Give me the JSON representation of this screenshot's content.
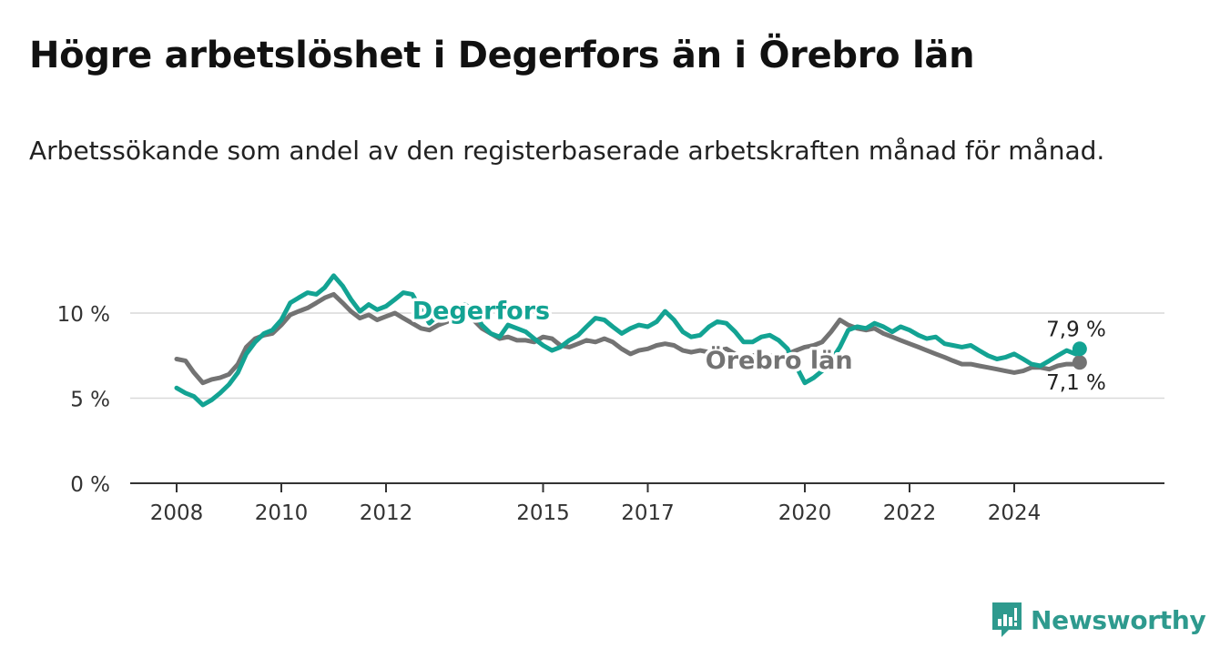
{
  "header": {
    "title": "Högre arbetslöshet i Degerfors än i Örebro län",
    "subtitle": "Arbetssökande som andel av den registerbaserade arbetskraften månad för månad."
  },
  "brand": {
    "name": "Newsworthy",
    "icon": "newsworthy-logo-icon",
    "color": "#2e9a8e"
  },
  "chart_data": {
    "type": "line",
    "title": "Högre arbetslöshet i Degerfors än i Örebro län",
    "subtitle": "Arbetssökande som andel av den registerbaserade arbetskraften månad för månad.",
    "ylim": [
      0,
      12.5
    ],
    "yticks": [
      0,
      5,
      10
    ],
    "ytick_labels": [
      "0 %",
      "5 %",
      "10 %"
    ],
    "xlim": [
      2008,
      2026.25
    ],
    "xticks": [
      2008,
      2010,
      2012,
      2015,
      2017,
      2020,
      2022,
      2024
    ],
    "xtick_labels": [
      "2008",
      "2010",
      "2012",
      "2015",
      "2017",
      "2020",
      "2022",
      "2024"
    ],
    "grid": true,
    "legend": "inline-labels",
    "series": [
      {
        "name": "Degerfors",
        "color": "#13a393",
        "end_label": "7,9 %",
        "points": [
          [
            2008.0,
            5.6
          ],
          [
            2008.17,
            5.3
          ],
          [
            2008.33,
            5.1
          ],
          [
            2008.5,
            4.6
          ],
          [
            2008.67,
            4.9
          ],
          [
            2008.83,
            5.3
          ],
          [
            2009.0,
            5.8
          ],
          [
            2009.17,
            6.5
          ],
          [
            2009.33,
            7.6
          ],
          [
            2009.5,
            8.3
          ],
          [
            2009.67,
            8.8
          ],
          [
            2009.83,
            9.0
          ],
          [
            2010.0,
            9.6
          ],
          [
            2010.17,
            10.6
          ],
          [
            2010.33,
            10.9
          ],
          [
            2010.5,
            11.2
          ],
          [
            2010.67,
            11.1
          ],
          [
            2010.83,
            11.5
          ],
          [
            2011.0,
            12.2
          ],
          [
            2011.17,
            11.6
          ],
          [
            2011.33,
            10.8
          ],
          [
            2011.5,
            10.1
          ],
          [
            2011.67,
            10.5
          ],
          [
            2011.83,
            10.2
          ],
          [
            2012.0,
            10.4
          ],
          [
            2012.17,
            10.8
          ],
          [
            2012.33,
            11.2
          ],
          [
            2012.5,
            11.1
          ],
          [
            2012.67,
            10.2
          ],
          [
            2012.83,
            9.4
          ],
          [
            2013.0,
            9.9
          ],
          [
            2013.17,
            10.1
          ],
          [
            2013.33,
            10.3
          ],
          [
            2013.5,
            10.5
          ],
          [
            2013.67,
            10.2
          ],
          [
            2013.83,
            9.3
          ],
          [
            2014.0,
            8.8
          ],
          [
            2014.17,
            8.6
          ],
          [
            2014.33,
            9.3
          ],
          [
            2014.5,
            9.1
          ],
          [
            2014.67,
            8.9
          ],
          [
            2014.83,
            8.5
          ],
          [
            2015.0,
            8.1
          ],
          [
            2015.17,
            7.8
          ],
          [
            2015.33,
            8.0
          ],
          [
            2015.5,
            8.4
          ],
          [
            2015.67,
            8.7
          ],
          [
            2015.83,
            9.2
          ],
          [
            2016.0,
            9.7
          ],
          [
            2016.17,
            9.6
          ],
          [
            2016.33,
            9.2
          ],
          [
            2016.5,
            8.8
          ],
          [
            2016.67,
            9.1
          ],
          [
            2016.83,
            9.3
          ],
          [
            2017.0,
            9.2
          ],
          [
            2017.17,
            9.5
          ],
          [
            2017.33,
            10.1
          ],
          [
            2017.5,
            9.6
          ],
          [
            2017.67,
            8.9
          ],
          [
            2017.83,
            8.6
          ],
          [
            2018.0,
            8.7
          ],
          [
            2018.17,
            9.2
          ],
          [
            2018.33,
            9.5
          ],
          [
            2018.5,
            9.4
          ],
          [
            2018.67,
            8.9
          ],
          [
            2018.83,
            8.3
          ],
          [
            2019.0,
            8.3
          ],
          [
            2019.17,
            8.6
          ],
          [
            2019.33,
            8.7
          ],
          [
            2019.5,
            8.4
          ],
          [
            2019.67,
            7.9
          ],
          [
            2019.83,
            6.9
          ],
          [
            2020.0,
            5.9
          ],
          [
            2020.17,
            6.2
          ],
          [
            2020.33,
            6.6
          ],
          [
            2020.5,
            7.2
          ],
          [
            2020.67,
            8.0
          ],
          [
            2020.83,
            9.0
          ],
          [
            2021.0,
            9.2
          ],
          [
            2021.17,
            9.1
          ],
          [
            2021.33,
            9.4
          ],
          [
            2021.5,
            9.2
          ],
          [
            2021.67,
            8.9
          ],
          [
            2021.83,
            9.2
          ],
          [
            2022.0,
            9.0
          ],
          [
            2022.17,
            8.7
          ],
          [
            2022.33,
            8.5
          ],
          [
            2022.5,
            8.6
          ],
          [
            2022.67,
            8.2
          ],
          [
            2022.83,
            8.1
          ],
          [
            2023.0,
            8.0
          ],
          [
            2023.17,
            8.1
          ],
          [
            2023.33,
            7.8
          ],
          [
            2023.5,
            7.5
          ],
          [
            2023.67,
            7.3
          ],
          [
            2023.83,
            7.4
          ],
          [
            2024.0,
            7.6
          ],
          [
            2024.17,
            7.3
          ],
          [
            2024.33,
            7.0
          ],
          [
            2024.5,
            6.9
          ],
          [
            2024.67,
            7.2
          ],
          [
            2024.83,
            7.5
          ],
          [
            2025.0,
            7.8
          ],
          [
            2025.17,
            7.6
          ],
          [
            2025.25,
            7.9
          ]
        ]
      },
      {
        "name": "Örebro län",
        "color": "#737373",
        "end_label": "7,1 %",
        "points": [
          [
            2008.0,
            7.3
          ],
          [
            2008.17,
            7.2
          ],
          [
            2008.33,
            6.5
          ],
          [
            2008.5,
            5.9
          ],
          [
            2008.67,
            6.1
          ],
          [
            2008.83,
            6.2
          ],
          [
            2009.0,
            6.4
          ],
          [
            2009.17,
            7.0
          ],
          [
            2009.33,
            8.0
          ],
          [
            2009.5,
            8.5
          ],
          [
            2009.67,
            8.7
          ],
          [
            2009.83,
            8.8
          ],
          [
            2010.0,
            9.3
          ],
          [
            2010.17,
            9.9
          ],
          [
            2010.33,
            10.1
          ],
          [
            2010.5,
            10.3
          ],
          [
            2010.67,
            10.6
          ],
          [
            2010.83,
            10.9
          ],
          [
            2011.0,
            11.1
          ],
          [
            2011.17,
            10.6
          ],
          [
            2011.33,
            10.1
          ],
          [
            2011.5,
            9.7
          ],
          [
            2011.67,
            9.9
          ],
          [
            2011.83,
            9.6
          ],
          [
            2012.0,
            9.8
          ],
          [
            2012.17,
            10.0
          ],
          [
            2012.33,
            9.7
          ],
          [
            2012.5,
            9.4
          ],
          [
            2012.67,
            9.1
          ],
          [
            2012.83,
            9.0
          ],
          [
            2013.0,
            9.3
          ],
          [
            2013.17,
            9.5
          ],
          [
            2013.33,
            9.8
          ],
          [
            2013.5,
            9.9
          ],
          [
            2013.67,
            9.6
          ],
          [
            2013.83,
            9.1
          ],
          [
            2014.0,
            8.8
          ],
          [
            2014.17,
            8.5
          ],
          [
            2014.33,
            8.6
          ],
          [
            2014.5,
            8.4
          ],
          [
            2014.67,
            8.4
          ],
          [
            2014.83,
            8.3
          ],
          [
            2015.0,
            8.6
          ],
          [
            2015.17,
            8.5
          ],
          [
            2015.33,
            8.1
          ],
          [
            2015.5,
            8.0
          ],
          [
            2015.67,
            8.2
          ],
          [
            2015.83,
            8.4
          ],
          [
            2016.0,
            8.3
          ],
          [
            2016.17,
            8.5
          ],
          [
            2016.33,
            8.3
          ],
          [
            2016.5,
            7.9
          ],
          [
            2016.67,
            7.6
          ],
          [
            2016.83,
            7.8
          ],
          [
            2017.0,
            7.9
          ],
          [
            2017.17,
            8.1
          ],
          [
            2017.33,
            8.2
          ],
          [
            2017.5,
            8.1
          ],
          [
            2017.67,
            7.8
          ],
          [
            2017.83,
            7.7
          ],
          [
            2018.0,
            7.8
          ],
          [
            2018.17,
            7.7
          ],
          [
            2018.33,
            7.8
          ],
          [
            2018.5,
            7.9
          ],
          [
            2018.67,
            7.6
          ],
          [
            2018.83,
            7.4
          ],
          [
            2019.0,
            7.5
          ],
          [
            2019.17,
            7.6
          ],
          [
            2019.33,
            7.5
          ],
          [
            2019.5,
            7.4
          ],
          [
            2019.67,
            7.6
          ],
          [
            2019.83,
            7.8
          ],
          [
            2020.0,
            8.0
          ],
          [
            2020.17,
            8.1
          ],
          [
            2020.33,
            8.3
          ],
          [
            2020.5,
            8.9
          ],
          [
            2020.67,
            9.6
          ],
          [
            2020.83,
            9.3
          ],
          [
            2021.0,
            9.1
          ],
          [
            2021.17,
            9.0
          ],
          [
            2021.33,
            9.1
          ],
          [
            2021.5,
            8.8
          ],
          [
            2021.67,
            8.6
          ],
          [
            2021.83,
            8.4
          ],
          [
            2022.0,
            8.2
          ],
          [
            2022.17,
            8.0
          ],
          [
            2022.33,
            7.8
          ],
          [
            2022.5,
            7.6
          ],
          [
            2022.67,
            7.4
          ],
          [
            2022.83,
            7.2
          ],
          [
            2023.0,
            7.0
          ],
          [
            2023.17,
            7.0
          ],
          [
            2023.33,
            6.9
          ],
          [
            2023.5,
            6.8
          ],
          [
            2023.67,
            6.7
          ],
          [
            2023.83,
            6.6
          ],
          [
            2024.0,
            6.5
          ],
          [
            2024.17,
            6.6
          ],
          [
            2024.33,
            6.8
          ],
          [
            2024.5,
            6.8
          ],
          [
            2024.67,
            6.7
          ],
          [
            2024.83,
            6.9
          ],
          [
            2025.0,
            7.0
          ],
          [
            2025.17,
            7.0
          ],
          [
            2025.25,
            7.1
          ]
        ]
      }
    ]
  }
}
